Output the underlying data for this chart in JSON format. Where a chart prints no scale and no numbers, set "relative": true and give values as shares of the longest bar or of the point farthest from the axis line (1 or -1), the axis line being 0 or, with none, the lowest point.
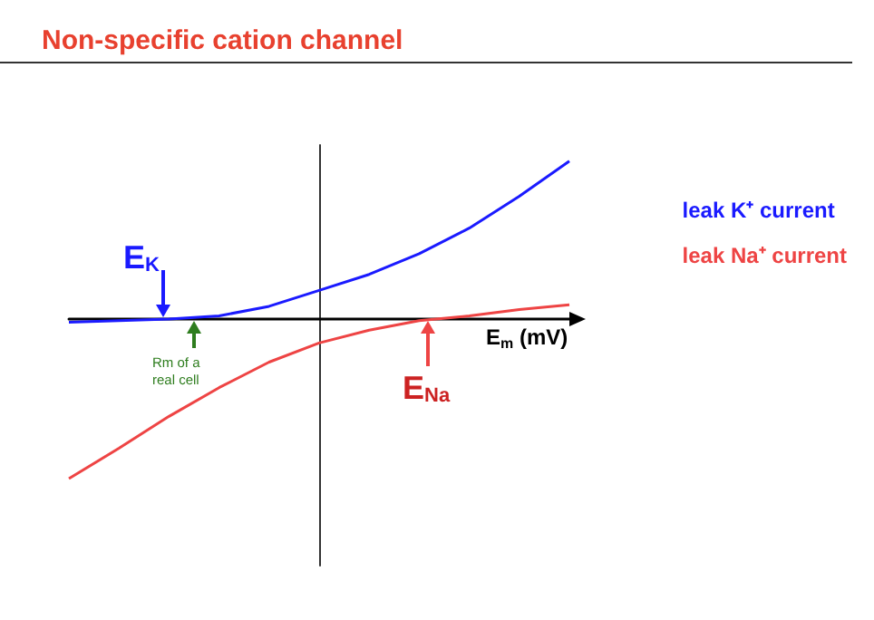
{
  "chart_data": {
    "type": "line",
    "title": "Non-specific cation channel",
    "relative": true,
    "xlabel": "E$_{m}$ (mV)",
    "categories": [
      null,
      null,
      null,
      null,
      null,
      null,
      null,
      null,
      null,
      null,
      null
    ],
    "series": [
      {
        "name": "leak K⁺ current",
        "color": "#1a1aff",
        "values": [
          -0.02,
          -0.01,
          0,
          0.02,
          0.08,
          0.18,
          0.28,
          0.41,
          0.57,
          0.77,
          0.99
        ]
      },
      {
        "name": "leak Na⁺ current",
        "color": "#ee4444",
        "values": [
          -1,
          -0.81,
          -0.61,
          -0.43,
          -0.27,
          -0.15,
          -0.07,
          -0.01,
          0.02,
          0.06,
          0.09
        ]
      }
    ],
    "annotations": [
      "E$_{K}$",
      "Rm of a real cell",
      "E$_{Na}$"
    ],
    "legend": "right",
    "marker": "none",
    "line_style": "solid",
    "grid": false
  }
}
